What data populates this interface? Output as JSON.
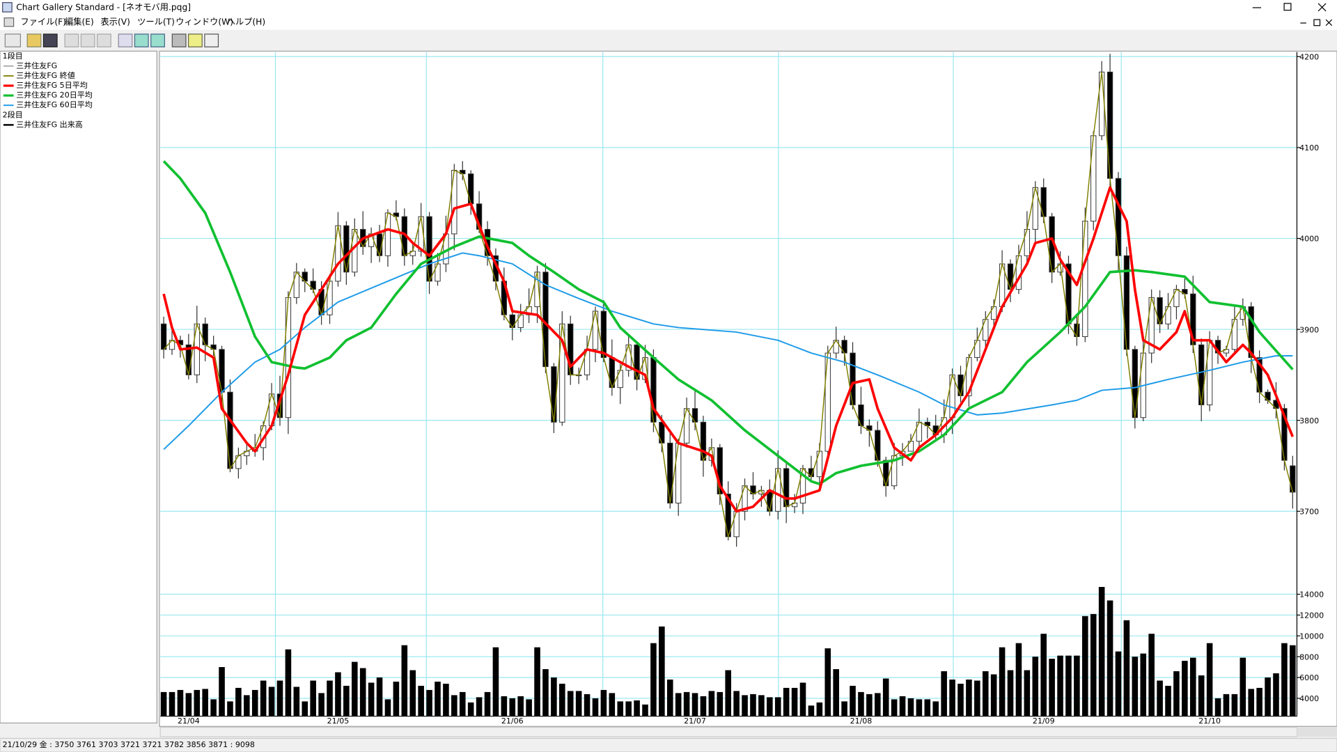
{
  "window": {
    "title": "Chart Gallery Standard - [ネオモバ用.pqg]",
    "menu": [
      "ファイル(F)",
      "編集(E)",
      "表示(V)",
      "ツール(T)",
      "ウィンドウ(W)",
      "ヘルプ(H)"
    ],
    "status_bar": "21/10/29 金 : 3750 3761 3703 3721   3721 3782 3856 3871 : 9098"
  },
  "chart_data": {
    "type": "candlestick",
    "panel_labels": [
      "1段目",
      "2段目"
    ],
    "grid": true,
    "categories": [
      null,
      null,
      null,
      "21/04",
      null,
      null,
      null,
      null,
      null,
      null,
      null,
      null,
      null,
      null,
      null,
      null,
      null,
      null,
      null,
      null,
      null,
      "21/05",
      null,
      null,
      null,
      null,
      null,
      null,
      null,
      null,
      null,
      null,
      null,
      null,
      null,
      null,
      null,
      null,
      null,
      null,
      null,
      null,
      "21/06",
      null,
      null,
      null,
      null,
      null,
      null,
      null,
      null,
      null,
      null,
      null,
      null,
      null,
      null,
      null,
      null,
      null,
      null,
      null,
      null,
      null,
      "21/07",
      null,
      null,
      null,
      null,
      null,
      null,
      null,
      null,
      null,
      null,
      null,
      null,
      null,
      null,
      null,
      null,
      null,
      null,
      null,
      "21/08",
      null,
      null,
      null,
      null,
      null,
      null,
      null,
      null,
      null,
      null,
      null,
      null,
      null,
      null,
      null,
      null,
      null,
      null,
      null,
      null,
      null,
      "21/09",
      null,
      null,
      null,
      null,
      null,
      null,
      null,
      null,
      null,
      null,
      null,
      null,
      null,
      null,
      null,
      null,
      null,
      null,
      null,
      "21/10",
      null,
      null,
      null,
      null,
      null,
      null,
      null,
      null,
      null,
      null
    ],
    "ylim": [
      3620,
      4205
    ],
    "yticks": [
      3700,
      3800,
      3900,
      4000,
      4100,
      4200
    ],
    "candle": {
      "name": "三井住友FG",
      "color": "#808080",
      "open": [
        3906,
        3878,
        3888,
        3883,
        3850,
        3906,
        3883,
        3878,
        3831,
        3747,
        3761,
        3766,
        3770,
        3794,
        3829,
        3803,
        3935,
        3963,
        3953,
        3944,
        3916,
        3953,
        4014,
        3963,
        4010,
        3991,
        4005,
        3981,
        4028,
        4024,
        3981,
        3986,
        4024,
        3953,
        3972,
        4005,
        4075,
        4071,
        4038,
        4010,
        3981,
        3953,
        3916,
        3902,
        3916,
        3925,
        3963,
        3859,
        3798,
        3906,
        3850,
        3850,
        3878,
        3920,
        3869,
        3836,
        3855,
        3883,
        3845,
        3869,
        3798,
        3775,
        3709,
        3775,
        3813,
        3798,
        3756,
        3770,
        3719,
        3672,
        3700,
        3728,
        3719,
        3723,
        3700,
        3747,
        3705,
        3709,
        3747,
        3738,
        3766,
        3874,
        3888,
        3874,
        3817,
        3794,
        3789,
        3756,
        3728,
        3761,
        3766,
        3777,
        3798,
        3794,
        3784,
        3803,
        3850,
        3827,
        3869,
        3888,
        3911,
        3925,
        3972,
        3944,
        3981,
        4010,
        4056,
        4024,
        3963,
        3972,
        3906,
        3892,
        4019,
        4113,
        4183,
        4066,
        3981,
        3878,
        3803,
        3874,
        3935,
        3906,
        3925,
        3944,
        3939,
        3883,
        3817,
        3888,
        3874,
        3878,
        3911,
        3925,
        3869,
        3831,
        3822,
        3813,
        3750
      ],
      "high": [
        3914,
        3903,
        3893,
        3895,
        3926,
        3913,
        3893,
        3882,
        3845,
        3770,
        3774,
        3785,
        3799,
        3841,
        3849,
        3942,
        3973,
        3967,
        3967,
        3953,
        3961,
        4029,
        4019,
        4022,
        4030,
        4012,
        4015,
        4032,
        4042,
        4033,
        3994,
        4039,
        4029,
        3984,
        4025,
        4082,
        4085,
        4075,
        4052,
        4019,
        3989,
        3968,
        3921,
        3928,
        3945,
        3970,
        3973,
        3863,
        3920,
        3915,
        3858,
        3893,
        3925,
        3932,
        3889,
        3862,
        3893,
        3887,
        3883,
        3878,
        3806,
        3790,
        3780,
        3825,
        3833,
        3805,
        3780,
        3774,
        3733,
        3709,
        3736,
        3743,
        3728,
        3735,
        3767,
        3754,
        3719,
        3751,
        3761,
        3775,
        3882,
        3903,
        3893,
        3886,
        3837,
        3801,
        3799,
        3760,
        3775,
        3775,
        3785,
        3813,
        3803,
        3806,
        3823,
        3857,
        3860,
        3873,
        3902,
        3920,
        3933,
        3987,
        3977,
        3993,
        4030,
        4063,
        4066,
        4028,
        3986,
        3981,
        3914,
        4034,
        4118,
        4195,
        4203,
        4073,
        3991,
        3882,
        3888,
        3944,
        3943,
        3940,
        3949,
        3956,
        3959,
        3890,
        3898,
        3893,
        3882,
        3925,
        3934,
        3930,
        3877,
        3834,
        3842,
        3818,
        3761
      ],
      "low": [
        3868,
        3872,
        3869,
        3845,
        3841,
        3865,
        3871,
        3819,
        3743,
        3736,
        3751,
        3760,
        3756,
        3789,
        3794,
        3785,
        3928,
        3941,
        3940,
        3905,
        3906,
        3947,
        3949,
        3958,
        3982,
        3973,
        3974,
        3969,
        4020,
        3970,
        3971,
        3980,
        3939,
        3948,
        3963,
        3987,
        4064,
        4026,
        4006,
        3970,
        3943,
        3910,
        3888,
        3897,
        3907,
        3907,
        3852,
        3786,
        3794,
        3839,
        3840,
        3844,
        3864,
        3864,
        3827,
        3818,
        3848,
        3833,
        3841,
        3787,
        3765,
        3703,
        3695,
        3770,
        3789,
        3738,
        3749,
        3707,
        3668,
        3661,
        3690,
        3713,
        3705,
        3695,
        3691,
        3687,
        3698,
        3697,
        3734,
        3727,
        3756,
        3868,
        3860,
        3812,
        3785,
        3771,
        3749,
        3716,
        3724,
        3750,
        3767,
        3771,
        3780,
        3779,
        3775,
        3785,
        3820,
        3815,
        3865,
        3877,
        3901,
        3919,
        3930,
        3939,
        3972,
        3992,
        4017,
        3951,
        3959,
        3895,
        3882,
        3886,
        4009,
        4108,
        4057,
        3963,
        3871,
        3791,
        3799,
        3863,
        3896,
        3900,
        3911,
        3934,
        3874,
        3799,
        3810,
        3862,
        3870,
        3873,
        3904,
        3852,
        3819,
        3818,
        3802,
        3745,
        3703
      ],
      "close": [
        3878,
        3888,
        3883,
        3850,
        3906,
        3883,
        3878,
        3831,
        3747,
        3761,
        3766,
        3770,
        3794,
        3829,
        3803,
        3935,
        3963,
        3953,
        3944,
        3916,
        3953,
        4014,
        3963,
        4010,
        3991,
        4005,
        3981,
        4028,
        4024,
        3981,
        3986,
        4024,
        3953,
        3972,
        4005,
        4075,
        4071,
        4038,
        4010,
        3981,
        3953,
        3916,
        3902,
        3916,
        3925,
        3963,
        3859,
        3798,
        3906,
        3850,
        3850,
        3878,
        3920,
        3869,
        3836,
        3855,
        3883,
        3845,
        3869,
        3798,
        3775,
        3709,
        3775,
        3813,
        3798,
        3756,
        3770,
        3719,
        3672,
        3700,
        3728,
        3719,
        3723,
        3700,
        3747,
        3705,
        3709,
        3747,
        3738,
        3766,
        3874,
        3888,
        3874,
        3817,
        3794,
        3789,
        3756,
        3728,
        3761,
        3766,
        3777,
        3798,
        3794,
        3784,
        3803,
        3850,
        3827,
        3869,
        3888,
        3911,
        3925,
        3972,
        3944,
        3981,
        4010,
        4056,
        4024,
        3963,
        3972,
        3906,
        3892,
        4019,
        4113,
        4183,
        4066,
        3981,
        3878,
        3803,
        3874,
        3935,
        3906,
        3925,
        3944,
        3939,
        3883,
        3817,
        3888,
        3874,
        3878,
        3911,
        3925,
        3869,
        3831,
        3822,
        3813,
        3756,
        3721
      ]
    },
    "close_line": {
      "name": "三井住友FG 終値",
      "color": "#808000"
    },
    "series": [
      {
        "name": "三井住友FG 5日平均",
        "color": "#ff0000",
        "x": [
          0,
          1,
          2,
          4,
          6,
          7,
          10,
          11,
          13,
          15,
          17,
          19,
          21,
          24,
          27,
          29,
          30,
          32,
          34,
          35,
          37,
          39,
          41,
          42,
          45,
          48,
          49,
          51,
          53,
          56,
          58,
          59,
          62,
          65,
          66,
          67,
          69,
          71,
          73,
          75,
          76,
          79,
          81,
          83,
          85,
          86,
          88,
          90,
          91,
          93,
          95,
          97,
          99,
          101,
          104,
          105,
          107,
          108,
          110,
          112,
          114,
          116,
          117,
          118,
          120,
          122,
          123,
          124,
          126,
          128,
          130,
          131,
          133,
          136
        ],
        "values": [
          3939,
          3902,
          3878,
          3880,
          3869,
          3813,
          3775,
          3766,
          3794,
          3850,
          3916,
          3944,
          3972,
          4000,
          4010,
          4005,
          3995,
          3981,
          4005,
          4033,
          4038,
          3991,
          3953,
          3920,
          3916,
          3888,
          3859,
          3878,
          3874,
          3859,
          3850,
          3813,
          3775,
          3766,
          3761,
          3728,
          3700,
          3705,
          3723,
          3714,
          3714,
          3723,
          3794,
          3841,
          3845,
          3813,
          3770,
          3756,
          3770,
          3784,
          3803,
          3831,
          3878,
          3925,
          3972,
          3995,
          4000,
          3977,
          3949,
          4000,
          4056,
          4019,
          3944,
          3888,
          3878,
          3897,
          3920,
          3888,
          3888,
          3864,
          3883,
          3874,
          3850,
          3782
        ]
      },
      {
        "name": "三井住友FG 20日平均",
        "color": "#10c030",
        "x": [
          0,
          2,
          5,
          8,
          11,
          13,
          16,
          17,
          20,
          22,
          25,
          28,
          31,
          35,
          38,
          42,
          44,
          47,
          50,
          53,
          55,
          59,
          62,
          66,
          70,
          74,
          78,
          79,
          81,
          84,
          88,
          91,
          94,
          97,
          101,
          104,
          108,
          111,
          114,
          117,
          119,
          123,
          126,
          130,
          132,
          136
        ],
        "values": [
          4085,
          4066,
          4028,
          3963,
          3892,
          3864,
          3858,
          3857,
          3869,
          3888,
          3902,
          3939,
          3972,
          3991,
          4002,
          3995,
          3981,
          3963,
          3944,
          3930,
          3902,
          3869,
          3845,
          3822,
          3789,
          3761,
          3733,
          3730,
          3742,
          3750,
          3756,
          3766,
          3784,
          3813,
          3831,
          3864,
          3897,
          3925,
          3963,
          3965,
          3963,
          3958,
          3930,
          3925,
          3897,
          3856
        ]
      },
      {
        "name": "三井住友FG 60日平均",
        "color": "#1e9be8",
        "x": [
          0,
          3,
          7,
          11,
          14,
          17,
          21,
          27,
          32,
          36,
          38,
          42,
          46,
          50,
          54,
          59,
          62,
          69,
          74,
          78,
          82,
          86,
          91,
          94,
          98,
          101,
          107,
          110,
          113,
          117,
          121,
          126,
          130,
          134,
          136
        ],
        "values": [
          3768,
          3794,
          3831,
          3864,
          3878,
          3902,
          3930,
          3953,
          3972,
          3984,
          3981,
          3972,
          3949,
          3934,
          3920,
          3906,
          3902,
          3897,
          3888,
          3874,
          3864,
          3850,
          3831,
          3817,
          3806,
          3808,
          3817,
          3822,
          3833,
          3836,
          3845,
          3855,
          3864,
          3871,
          3871
        ]
      }
    ],
    "volume": {
      "name": "三井住友FG 出来高",
      "color": "#000000",
      "ylim": [
        2280,
        14980
      ],
      "yticks": [
        4000,
        6000,
        8000,
        10000,
        12000,
        14000
      ],
      "values": [
        4600,
        4600,
        4800,
        4500,
        4800,
        4900,
        3900,
        7000,
        3700,
        5000,
        4300,
        4800,
        5700,
        5100,
        5700,
        8700,
        5100,
        3700,
        5700,
        4500,
        5700,
        6500,
        5200,
        7500,
        6900,
        5500,
        6000,
        3900,
        5600,
        9100,
        6700,
        5200,
        4800,
        5600,
        5400,
        4300,
        4600,
        3600,
        4100,
        4600,
        8900,
        4200,
        4000,
        4200,
        3900,
        8900,
        6800,
        6000,
        5400,
        4700,
        4700,
        4400,
        4000,
        4800,
        4500,
        3700,
        3700,
        3800,
        3400,
        9300,
        10900,
        5800,
        4500,
        4600,
        4500,
        4200,
        4700,
        4600,
        6700,
        4700,
        4300,
        4400,
        4300,
        4100,
        4100,
        5000,
        5000,
        5500,
        3300,
        3600,
        8800,
        6800,
        3700,
        5200,
        4600,
        4400,
        4500,
        5900,
        3900,
        4200,
        4000,
        3900,
        3900,
        3700,
        6600,
        5800,
        5400,
        5800,
        5700,
        6600,
        6300,
        8900,
        6700,
        9300,
        6700,
        8000,
        10200,
        7800,
        8100,
        8100,
        8100,
        11900,
        12100,
        14700,
        13400,
        8500,
        11500,
        8000,
        8300,
        10200,
        5700,
        5200,
        6600,
        7600,
        7900,
        6200,
        9300,
        4000,
        4400,
        4400,
        7900,
        4900,
        5000,
        6000,
        6400,
        9300,
        9098
      ]
    }
  }
}
